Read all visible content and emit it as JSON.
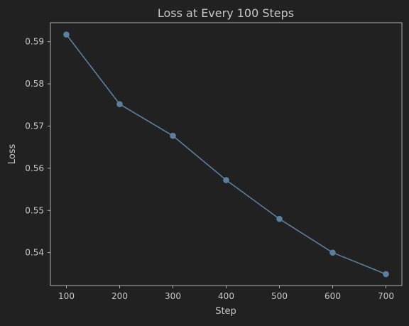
{
  "chart_data": {
    "type": "line",
    "title": "Loss at Every 100 Steps",
    "xlabel": "Step",
    "ylabel": "Loss",
    "x": [
      100,
      200,
      300,
      400,
      500,
      600,
      700
    ],
    "series": [
      {
        "values": [
          0.5917,
          0.5752,
          0.5677,
          0.5572,
          0.548,
          0.54,
          0.5349
        ]
      }
    ],
    "xticks": [
      "100",
      "200",
      "300",
      "400",
      "500",
      "600",
      "700"
    ],
    "yticks": [
      "0.54",
      "0.55",
      "0.56",
      "0.57",
      "0.58",
      "0.59"
    ],
    "xlim": [
      70,
      730
    ],
    "ylim": [
      0.5322,
      0.5945
    ],
    "grid": false,
    "colors": {
      "line": "#5b7f9e",
      "background": "#212121",
      "text": "#c8c8c8"
    }
  }
}
